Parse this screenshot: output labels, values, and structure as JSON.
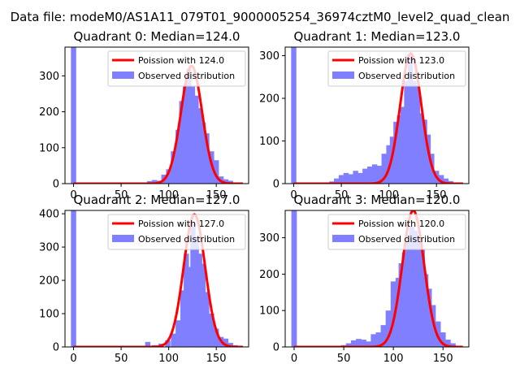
{
  "figure": {
    "suptitle": "Data file: modeM0/AS1A11_079T01_9000005254_36974cztM0_level2_quad_clean"
  },
  "chart_data": [
    {
      "type": "bar",
      "title": "Quadrant 0: Median=124.0",
      "xlim": [
        -9,
        184
      ],
      "ylim": [
        0,
        380
      ],
      "xticks": [
        0,
        50,
        100,
        150
      ],
      "yticks": [
        0,
        100,
        200,
        300
      ],
      "grid": false,
      "legend_position": "top-right",
      "legend": [
        "Poission with 124.0",
        "Observed distribution"
      ],
      "colors": {
        "model": "#ff0000",
        "observed": "#7f7fff"
      },
      "series": [
        {
          "name": "Observed distribution",
          "type": "histogram",
          "bars": [
            [
              0,
              380
            ],
            [
              75,
              2
            ],
            [
              80,
              7
            ],
            [
              85,
              10
            ],
            [
              90,
              8
            ],
            [
              95,
              25
            ],
            [
              100,
              40
            ],
            [
              105,
              90
            ],
            [
              110,
              150
            ],
            [
              113.8,
              230
            ],
            [
              117.5,
              270
            ],
            [
              121.2,
              320
            ],
            [
              125,
              270
            ],
            [
              128.8,
              245
            ],
            [
              132.5,
              210
            ],
            [
              136.2,
              170
            ],
            [
              140,
              140
            ],
            [
              145,
              90
            ],
            [
              150,
              65
            ],
            [
              155,
              20
            ],
            [
              160,
              12
            ],
            [
              165,
              8
            ],
            [
              170,
              3
            ]
          ]
        },
        {
          "name": "Poission with 124.0",
          "type": "line",
          "mean": 124.0,
          "amplitude": 328
        }
      ]
    },
    {
      "type": "bar",
      "title": "Quadrant 1: Median=123.0",
      "xlim": [
        -9,
        184
      ],
      "ylim": [
        0,
        320
      ],
      "xticks": [
        0,
        50,
        100,
        150
      ],
      "yticks": [
        0,
        100,
        200,
        300
      ],
      "grid": false,
      "legend_position": "top-right",
      "legend": [
        "Poission with 123.0",
        "Observed distribution"
      ],
      "colors": {
        "model": "#ff0000",
        "observed": "#7f7fff"
      },
      "series": [
        {
          "name": "Observed distribution",
          "type": "histogram",
          "bars": [
            [
              0,
              320
            ],
            [
              40,
              5
            ],
            [
              45,
              12
            ],
            [
              50,
              20
            ],
            [
              55,
              25
            ],
            [
              60,
              22
            ],
            [
              65,
              30
            ],
            [
              70,
              25
            ],
            [
              75,
              35
            ],
            [
              80,
              40
            ],
            [
              85,
              45
            ],
            [
              90,
              42
            ],
            [
              95,
              70
            ],
            [
              100,
              90
            ],
            [
              103.75,
              110
            ],
            [
              107.5,
              145
            ],
            [
              111.25,
              160
            ],
            [
              115,
              180
            ],
            [
              118.75,
              240
            ],
            [
              122.5,
              300
            ],
            [
              126.25,
              240
            ],
            [
              130,
              230
            ],
            [
              133.75,
              165
            ],
            [
              137.5,
              150
            ],
            [
              141.25,
              115
            ],
            [
              145,
              70
            ],
            [
              150,
              30
            ],
            [
              155,
              20
            ],
            [
              160,
              12
            ],
            [
              165,
              6
            ]
          ]
        },
        {
          "name": "Poission with 123.0",
          "type": "line",
          "mean": 123.0,
          "amplitude": 305
        }
      ]
    },
    {
      "type": "bar",
      "title": "Quadrant 2: Median=127.0",
      "xlim": [
        -9,
        184
      ],
      "ylim": [
        0,
        410
      ],
      "xticks": [
        0,
        50,
        100,
        150
      ],
      "yticks": [
        0,
        100,
        200,
        300,
        400
      ],
      "grid": false,
      "legend_position": "top-right",
      "legend": [
        "Poission with 127.0",
        "Observed distribution"
      ],
      "colors": {
        "model": "#ff0000",
        "observed": "#7f7fff"
      },
      "series": [
        {
          "name": "Observed distribution",
          "type": "histogram",
          "bars": [
            [
              0,
              410
            ],
            [
              78,
              15
            ],
            [
              85,
              5
            ],
            [
              92,
              10
            ],
            [
              99,
              20
            ],
            [
              105,
              40
            ],
            [
              110,
              80
            ],
            [
              115,
              170
            ],
            [
              118.5,
              280
            ],
            [
              122,
              240
            ],
            [
              125.5,
              370
            ],
            [
              129,
              330
            ],
            [
              132.5,
              280
            ],
            [
              136,
              250
            ],
            [
              140,
              165
            ],
            [
              145,
              100
            ],
            [
              150,
              55
            ],
            [
              155,
              30
            ],
            [
              160,
              25
            ],
            [
              165,
              12
            ],
            [
              170,
              5
            ]
          ]
        },
        {
          "name": "Poission with 127.0",
          "type": "line",
          "mean": 127.0,
          "amplitude": 398
        }
      ]
    },
    {
      "type": "bar",
      "title": "Quadrant 3: Median=120.0",
      "xlim": [
        -9,
        176
      ],
      "ylim": [
        0,
        375
      ],
      "xticks": [
        0,
        50,
        100,
        150
      ],
      "yticks": [
        0,
        100,
        200,
        300
      ],
      "grid": false,
      "legend_position": "top-right",
      "legend": [
        "Poission with 120.0",
        "Observed distribution"
      ],
      "colors": {
        "model": "#ff0000",
        "observed": "#7f7fff"
      },
      "series": [
        {
          "name": "Observed distribution",
          "type": "histogram",
          "bars": [
            [
              0,
              375
            ],
            [
              50,
              5
            ],
            [
              55,
              10
            ],
            [
              60,
              18
            ],
            [
              65,
              22
            ],
            [
              70,
              20
            ],
            [
              75,
              15
            ],
            [
              80,
              35
            ],
            [
              85,
              40
            ],
            [
              90,
              60
            ],
            [
              95,
              100
            ],
            [
              100,
              180
            ],
            [
              105,
              190
            ],
            [
              108,
              230
            ],
            [
              111.5,
              260
            ],
            [
              115,
              290
            ],
            [
              118.5,
              330
            ],
            [
              122,
              320
            ],
            [
              125.5,
              290
            ],
            [
              129,
              270
            ],
            [
              132.5,
              200
            ],
            [
              136,
              160
            ],
            [
              140,
              115
            ],
            [
              145,
              70
            ],
            [
              150,
              40
            ],
            [
              155,
              20
            ],
            [
              160,
              10
            ]
          ]
        },
        {
          "name": "Poission with 120.0",
          "type": "line",
          "mean": 120.0,
          "amplitude": 375
        }
      ]
    }
  ]
}
